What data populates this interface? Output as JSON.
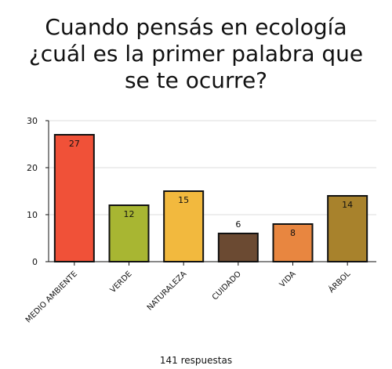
{
  "title_lines": [
    "Cuando pensás en ecología",
    "¿cuál es la primer palabra que",
    "se te ocurre?"
  ],
  "footer": "141 respuestas",
  "colors": {
    "bar_stroke": "#111111",
    "grid": "#dddddd",
    "axis": "#111111"
  },
  "chart_data": {
    "type": "bar",
    "title": "Cuando pensás en ecología ¿cuál es la primer palabra que se te ocurre?",
    "xlabel": "",
    "ylabel": "",
    "ylim": [
      0,
      30
    ],
    "yticks": [
      0,
      10,
      20,
      30
    ],
    "grid": true,
    "categories": [
      "MEDIO AMBIENTE",
      "VERDE",
      "NATURALEZA",
      "CUIDADO",
      "VIDA",
      "ÁRBOL"
    ],
    "values": [
      27,
      12,
      15,
      6,
      8,
      14
    ],
    "bar_colors": [
      "#f05138",
      "#a8b632",
      "#f2b93e",
      "#6b4a32",
      "#e88640",
      "#a8822c"
    ]
  }
}
